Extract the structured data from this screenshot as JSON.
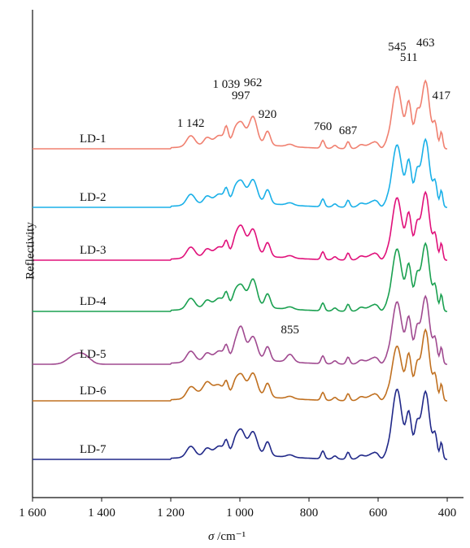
{
  "chart_data": {
    "type": "line",
    "xlabel_symbol": "σ",
    "xlabel_unit": " /cm⁻¹",
    "ylabel": "Reflectivity",
    "x_axis": {
      "reversed": true,
      "xlim": [
        1600,
        400
      ],
      "ticks": [
        1600,
        1400,
        1200,
        1000,
        800,
        600,
        400
      ],
      "tick_labels": [
        "1 600",
        "1 400",
        "1 200",
        "1 000",
        "800",
        "600",
        "400"
      ]
    },
    "y_axis": {
      "ticks_shown": false,
      "units": "arbitrary (stacked, offset)"
    },
    "grid": false,
    "legend": "none (series labeled inline)",
    "series": [
      {
        "name": "LD-1",
        "color": "#f08070",
        "offset": 6
      },
      {
        "name": "LD-2",
        "color": "#1ab0e8",
        "offset": 5
      },
      {
        "name": "LD-3",
        "color": "#e0107a",
        "offset": 4
      },
      {
        "name": "LD-4",
        "color": "#1aa050",
        "offset": 3
      },
      {
        "name": "LD-5",
        "color": "#a04a90",
        "offset": 2
      },
      {
        "name": "LD-6",
        "color": "#c07020",
        "offset": 1
      },
      {
        "name": "LD-7",
        "color": "#202888",
        "offset": 0
      }
    ],
    "peaks": [
      {
        "x": 1142,
        "label": "1 142"
      },
      {
        "x": 1039,
        "label": "1 039"
      },
      {
        "x": 997,
        "label": "997"
      },
      {
        "x": 962,
        "label": "962"
      },
      {
        "x": 920,
        "label": "920"
      },
      {
        "x": 855,
        "label": "855"
      },
      {
        "x": 760,
        "label": "760"
      },
      {
        "x": 687,
        "label": "687"
      },
      {
        "x": 545,
        "label": "545"
      },
      {
        "x": 511,
        "label": "511"
      },
      {
        "x": 463,
        "label": "463"
      },
      {
        "x": 417,
        "label": "417"
      }
    ]
  }
}
